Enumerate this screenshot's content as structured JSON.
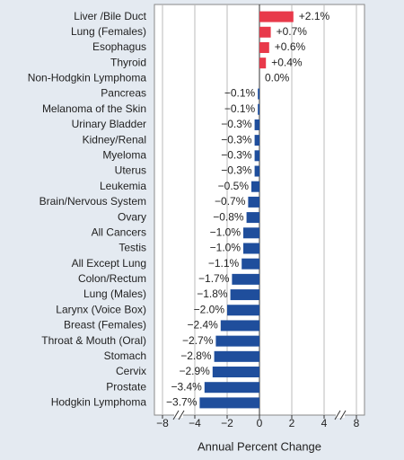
{
  "chart_data": {
    "type": "barh",
    "xlabel": "Annual Percent Change",
    "categories": [
      "Liver /Bile Duct",
      "Lung (Females)",
      "Esophagus",
      "Thyroid",
      "Non-Hodgkin Lymphoma",
      "Pancreas",
      "Melanoma of the Skin",
      "Urinary Bladder",
      "Kidney/Renal",
      "Myeloma",
      "Uterus",
      "Leukemia",
      "Brain/Nervous System",
      "Ovary",
      "All Cancers",
      "Testis",
      "All Except Lung",
      "Colon/Rectum",
      "Lung (Males)",
      "Larynx (Voice Box)",
      "Breast (Females)",
      "Throat & Mouth (Oral)",
      "Stomach",
      "Cervix",
      "Prostate",
      "Hodgkin Lymphoma"
    ],
    "values": [
      2.1,
      0.7,
      0.6,
      0.4,
      0.0,
      -0.1,
      -0.1,
      -0.3,
      -0.3,
      -0.3,
      -0.3,
      -0.5,
      -0.7,
      -0.8,
      -1.0,
      -1.0,
      -1.1,
      -1.7,
      -1.8,
      -2.0,
      -2.4,
      -2.7,
      -2.8,
      -2.9,
      -3.4,
      -3.7
    ],
    "value_labels": [
      "+2.1%",
      "+0.7%",
      "+0.6%",
      "+0.4%",
      "0.0%",
      "−0.1%",
      "−0.1%",
      "−0.3%",
      "−0.3%",
      "−0.3%",
      "−0.3%",
      "−0.5%",
      "−0.7%",
      "−0.8%",
      "−1.0%",
      "−1.0%",
      "−1.1%",
      "−1.7%",
      "−1.8%",
      "−2.0%",
      "−2.4%",
      "−2.7%",
      "−2.8%",
      "−2.9%",
      "−3.4%",
      "−3.7%"
    ],
    "positive_color": "#e8394a",
    "negative_color": "#1f4e9c",
    "xlim": [
      -9,
      9
    ],
    "xticks": [
      {
        "value": -8,
        "label": "−8"
      },
      {
        "value": -4,
        "label": "−4"
      },
      {
        "value": -2,
        "label": "−2"
      },
      0,
      2,
      4,
      8
    ],
    "xbreaks": [
      -4,
      4
    ],
    "grid": true
  }
}
